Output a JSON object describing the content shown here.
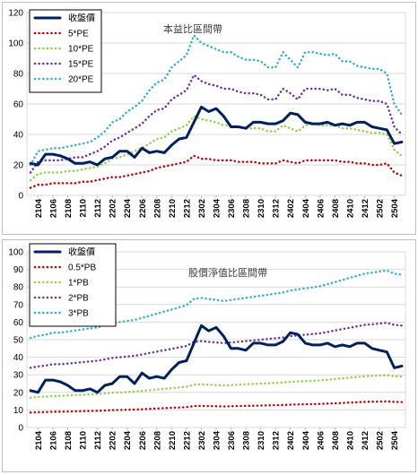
{
  "chart_data": [
    {
      "type": "line",
      "title": "本益比區間帶",
      "xlabel": "",
      "ylabel": "",
      "ylim": [
        0,
        120
      ],
      "yticks": [
        0,
        20,
        40,
        60,
        80,
        100,
        120
      ],
      "grid": true,
      "legend_placement": "top-left",
      "x_tick_labels": [
        "2104",
        "2106",
        "2108",
        "2110",
        "2112",
        "2202",
        "2204",
        "2206",
        "2208",
        "2210",
        "2212",
        "2302",
        "2304",
        "2306",
        "2308",
        "2310",
        "2312",
        "2402",
        "2404",
        "2406",
        "2408",
        "2410",
        "2412",
        "2502",
        "2504"
      ],
      "x": [
        "2103",
        "2104",
        "2105",
        "2106",
        "2107",
        "2108",
        "2109",
        "2110",
        "2111",
        "2112",
        "2201",
        "2202",
        "2203",
        "2204",
        "2205",
        "2206",
        "2207",
        "2208",
        "2209",
        "2210",
        "2211",
        "2212",
        "2301",
        "2302",
        "2303",
        "2304",
        "2305",
        "2306",
        "2307",
        "2308",
        "2309",
        "2310",
        "2311",
        "2312",
        "2401",
        "2402",
        "2403",
        "2404",
        "2405",
        "2406",
        "2407",
        "2408",
        "2409",
        "2410",
        "2411",
        "2412",
        "2501",
        "2502",
        "2503",
        "2504",
        "2505"
      ],
      "series": [
        {
          "name": "收盤價",
          "color": "#002060",
          "style": "solid",
          "values": [
            21,
            20,
            27,
            27,
            26,
            24,
            21,
            21,
            22,
            20,
            24,
            25,
            29,
            29,
            25,
            31,
            28,
            29,
            28,
            33,
            37,
            38,
            48,
            58,
            55,
            57,
            52,
            45,
            45,
            44,
            48,
            48,
            47,
            47,
            49,
            54,
            53,
            48,
            47,
            47,
            48,
            46,
            47,
            46,
            48,
            48,
            45,
            44,
            43,
            34,
            35
          ]
        },
        {
          "name": "5*PE",
          "color": "#c00000",
          "style": "dotted",
          "values": [
            5,
            7,
            7,
            8,
            8,
            8,
            8,
            9,
            9,
            10,
            11,
            12,
            12,
            13,
            14,
            15,
            16,
            18,
            19,
            20,
            21,
            22,
            26,
            24,
            24,
            23,
            23,
            23,
            22,
            22,
            22,
            21,
            21,
            21,
            23,
            22,
            21,
            23,
            23,
            23,
            23,
            23,
            22,
            22,
            21,
            21,
            20,
            20,
            21,
            15,
            13
          ]
        },
        {
          "name": "10*PE",
          "color": "#92d050",
          "style": "dotted",
          "values": [
            10,
            14,
            15,
            15,
            15,
            16,
            16,
            17,
            18,
            19,
            21,
            24,
            25,
            27,
            29,
            31,
            34,
            37,
            38,
            42,
            44,
            46,
            52,
            50,
            49,
            48,
            46,
            46,
            45,
            44,
            44,
            44,
            42,
            42,
            46,
            44,
            42,
            46,
            47,
            46,
            46,
            46,
            44,
            44,
            43,
            42,
            41,
            41,
            40,
            30,
            26
          ]
        },
        {
          "name": "15*PE",
          "color": "#7030a0",
          "style": "dotted",
          "values": [
            15,
            22,
            23,
            23,
            23,
            24,
            25,
            25,
            27,
            29,
            32,
            36,
            38,
            41,
            44,
            47,
            52,
            56,
            57,
            63,
            66,
            69,
            79,
            75,
            73,
            72,
            70,
            70,
            68,
            67,
            67,
            66,
            63,
            63,
            70,
            67,
            63,
            70,
            70,
            70,
            69,
            70,
            66,
            66,
            64,
            63,
            62,
            62,
            60,
            45,
            40
          ]
        },
        {
          "name": "20*PE",
          "color": "#31b0c8",
          "style": "dotted",
          "values": [
            20,
            29,
            30,
            31,
            31,
            32,
            33,
            34,
            35,
            38,
            42,
            48,
            50,
            55,
            58,
            62,
            69,
            74,
            76,
            84,
            88,
            92,
            105,
            100,
            98,
            96,
            94,
            94,
            91,
            89,
            89,
            88,
            84,
            84,
            94,
            89,
            84,
            94,
            94,
            93,
            92,
            93,
            88,
            88,
            85,
            84,
            83,
            83,
            80,
            60,
            53
          ]
        }
      ]
    },
    {
      "type": "line",
      "title": "股價淨值比區間帶",
      "xlabel": "",
      "ylabel": "",
      "ylim": [
        0,
        100
      ],
      "yticks": [
        0,
        10,
        20,
        30,
        40,
        50,
        60,
        70,
        80,
        90,
        100
      ],
      "grid": true,
      "legend_placement": "top-left",
      "x_tick_labels": [
        "2104",
        "2106",
        "2108",
        "2110",
        "2112",
        "2202",
        "2204",
        "2206",
        "2208",
        "2210",
        "2212",
        "2302",
        "2304",
        "2306",
        "2308",
        "2310",
        "2312",
        "2402",
        "2404",
        "2406",
        "2408",
        "2410",
        "2412",
        "2502",
        "2504"
      ],
      "x": [
        "2103",
        "2104",
        "2105",
        "2106",
        "2107",
        "2108",
        "2109",
        "2110",
        "2111",
        "2112",
        "2201",
        "2202",
        "2203",
        "2204",
        "2205",
        "2206",
        "2207",
        "2208",
        "2209",
        "2210",
        "2211",
        "2212",
        "2301",
        "2302",
        "2303",
        "2304",
        "2305",
        "2306",
        "2307",
        "2308",
        "2309",
        "2310",
        "2311",
        "2312",
        "2401",
        "2402",
        "2403",
        "2404",
        "2405",
        "2406",
        "2407",
        "2408",
        "2409",
        "2410",
        "2411",
        "2412",
        "2501",
        "2502",
        "2503",
        "2504",
        "2505"
      ],
      "series": [
        {
          "name": "收盤價",
          "color": "#002060",
          "style": "solid",
          "values": [
            21,
            20,
            27,
            27,
            26,
            24,
            21,
            21,
            22,
            20,
            24,
            25,
            29,
            29,
            25,
            31,
            28,
            29,
            28,
            33,
            37,
            38,
            48,
            58,
            55,
            57,
            52,
            45,
            45,
            44,
            48,
            48,
            47,
            47,
            49,
            54,
            53,
            48,
            47,
            47,
            48,
            46,
            47,
            46,
            48,
            48,
            45,
            44,
            43,
            34,
            35
          ]
        },
        {
          "name": "0.5*PB",
          "color": "#c00000",
          "style": "dotted",
          "values": [
            8.5,
            8.7,
            8.8,
            9,
            9,
            9.1,
            9.2,
            9.3,
            9.4,
            9.5,
            9.7,
            9.9,
            10,
            10.1,
            10.2,
            10.4,
            10.6,
            10.8,
            11,
            11.2,
            11.4,
            11.6,
            12.2,
            12.3,
            12.2,
            12.1,
            12,
            12.1,
            12.2,
            12.3,
            12.4,
            12.5,
            12.6,
            12.7,
            12.8,
            13,
            13.1,
            13.2,
            13.3,
            13.4,
            13.6,
            13.8,
            14,
            14.2,
            14.4,
            14.6,
            14.7,
            14.8,
            14.9,
            14.6,
            14.5
          ]
        },
        {
          "name": "1*PB",
          "color": "#92d050",
          "style": "dotted",
          "values": [
            17,
            17.4,
            17.6,
            18,
            18,
            18.2,
            18.4,
            18.6,
            18.8,
            19,
            19.4,
            19.8,
            20,
            20.2,
            20.4,
            20.8,
            21.2,
            21.6,
            22,
            22.4,
            22.8,
            23.2,
            24.4,
            24.6,
            24.4,
            24.2,
            24,
            24.2,
            24.4,
            24.6,
            24.8,
            25,
            25.2,
            25.4,
            25.6,
            26,
            26.2,
            26.4,
            26.6,
            26.8,
            27.2,
            27.6,
            28,
            28.4,
            28.8,
            29.2,
            29.4,
            29.6,
            29.8,
            29.2,
            29
          ]
        },
        {
          "name": "2*PB",
          "color": "#7030a0",
          "style": "dotted",
          "values": [
            34,
            34.8,
            35.2,
            36,
            36,
            36.4,
            36.8,
            37.2,
            37.6,
            38,
            38.8,
            39.6,
            40,
            40.4,
            40.8,
            41.6,
            42.4,
            43.2,
            44,
            44.8,
            45.6,
            46.4,
            48.8,
            49.2,
            48.8,
            48.4,
            48,
            48.4,
            48.8,
            49.2,
            49.6,
            50,
            50.4,
            50.8,
            51.2,
            52,
            52.4,
            52.8,
            53.2,
            53.6,
            54.4,
            55.2,
            56,
            56.8,
            57.6,
            58.4,
            58.8,
            59.2,
            59.6,
            58.4,
            58
          ]
        },
        {
          "name": "3*PB",
          "color": "#31b0c8",
          "style": "dotted",
          "values": [
            51,
            52.2,
            52.8,
            54,
            54,
            54.6,
            55.2,
            55.8,
            56.4,
            57,
            58.2,
            59.4,
            60,
            60.6,
            61.2,
            62.4,
            63.6,
            64.8,
            66,
            67.2,
            68.4,
            69.6,
            73.2,
            73.8,
            73.2,
            72.6,
            72,
            72.6,
            73.2,
            73.8,
            74.4,
            75,
            75.6,
            76.2,
            76.8,
            78,
            78.6,
            79.2,
            79.8,
            80.4,
            81.6,
            82.8,
            84,
            85.2,
            86.4,
            87.6,
            88.2,
            88.8,
            89.4,
            87.6,
            87
          ]
        }
      ]
    }
  ]
}
